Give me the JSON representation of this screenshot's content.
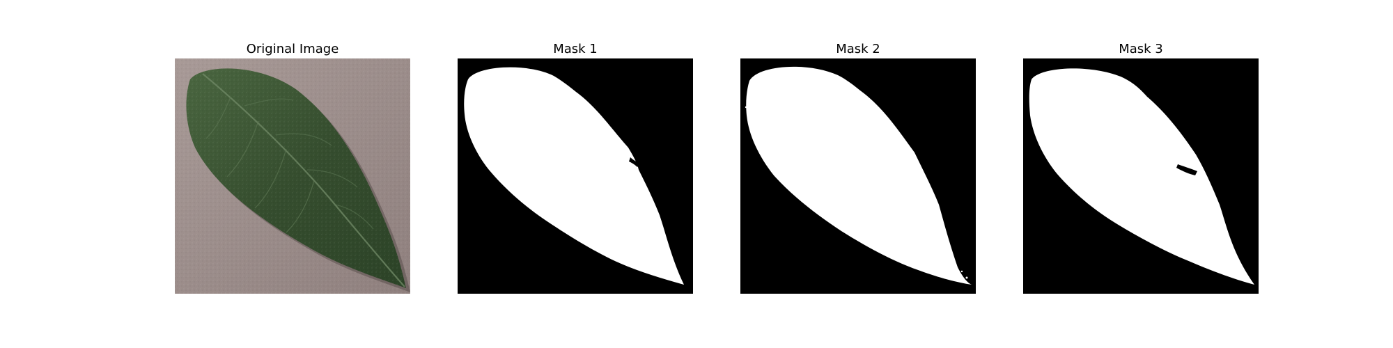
{
  "figure": {
    "panels": [
      {
        "title": "Original Image"
      },
      {
        "title": "Mask 1"
      },
      {
        "title": "Mask 2"
      },
      {
        "title": "Mask 3"
      }
    ]
  },
  "colors": {
    "background": "#ffffff",
    "mask_background": "#000000",
    "mask_foreground": "#ffffff",
    "photo_background": "#9c8e8e",
    "leaf_dark": "#273d22",
    "leaf_light": "#4e6a43"
  }
}
